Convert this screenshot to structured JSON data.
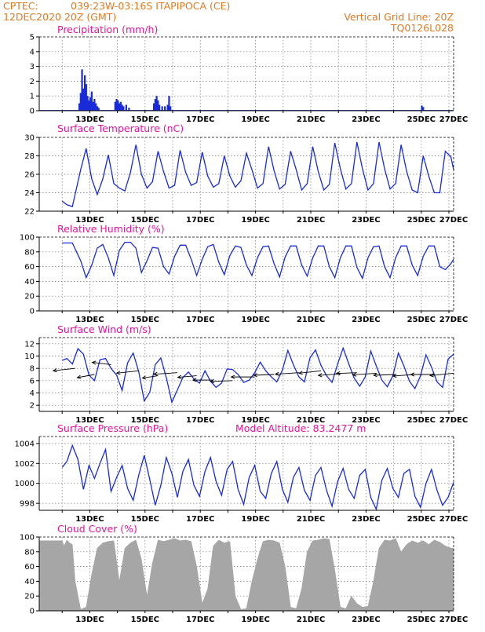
{
  "header": {
    "source": "CPTEC:",
    "location": "039:23W-03:16S  ITAPIPOCA (CE)",
    "datetime": "12DEC2020 20Z (GMT)",
    "grid_note": "Vertical Grid Line: 20Z",
    "code": "TQ0126L028"
  },
  "x_labels": [
    "13DEC",
    "15DEC",
    "17DEC",
    "19DEC",
    "21DEC",
    "23DEC",
    "25DEC",
    "27DEC"
  ],
  "chart_data": [
    {
      "id": "precip",
      "type": "bar",
      "title": "Precipitation (mm/h)",
      "ylim": [
        0,
        5
      ],
      "yticks": [
        0,
        1,
        2,
        3,
        4,
        5
      ],
      "x_unit": "days since 12DEC2020 00Z",
      "x": [
        1.45,
        1.5,
        1.55,
        1.6,
        1.65,
        1.7,
        1.75,
        1.8,
        1.85,
        1.9,
        1.95,
        2.0,
        2.05,
        2.1,
        2.15,
        2.75,
        2.8,
        2.85,
        2.9,
        2.95,
        3.0,
        3.05,
        3.15,
        3.25,
        4.15,
        4.2,
        4.25,
        4.3,
        4.35,
        4.45,
        4.55,
        4.65,
        4.7,
        4.75,
        13.85,
        13.9
      ],
      "values": [
        0.5,
        1.2,
        2.8,
        1.5,
        2.4,
        1.8,
        1.0,
        0.7,
        0.9,
        1.3,
        0.6,
        0.8,
        0.5,
        0.3,
        0.2,
        0.6,
        0.8,
        0.7,
        0.5,
        0.6,
        0.4,
        0.3,
        0.4,
        0.2,
        0.5,
        0.8,
        1.0,
        0.7,
        0.4,
        0.3,
        0.3,
        0.4,
        1.0,
        0.3,
        0.35,
        0.25
      ]
    },
    {
      "id": "temp",
      "type": "line",
      "title": "Surface Temperature (nC)",
      "ylim": [
        22,
        30
      ],
      "yticks": [
        22,
        24,
        26,
        28,
        30
      ],
      "x": [
        0.83,
        1.0,
        1.2,
        1.5,
        1.7,
        1.9,
        2.1,
        2.3,
        2.5,
        2.7,
        2.9,
        3.1,
        3.3,
        3.5,
        3.7,
        3.9,
        4.1,
        4.3,
        4.5,
        4.7,
        4.9,
        5.1,
        5.3,
        5.5,
        5.7,
        5.9,
        6.1,
        6.3,
        6.5,
        6.7,
        6.9,
        7.1,
        7.3,
        7.5,
        7.7,
        7.9,
        8.1,
        8.3,
        8.5,
        8.7,
        8.9,
        9.1,
        9.3,
        9.5,
        9.7,
        9.9,
        10.1,
        10.3,
        10.5,
        10.7,
        10.9,
        11.1,
        11.3,
        11.5,
        11.7,
        11.9,
        12.1,
        12.3,
        12.5,
        12.7,
        12.9,
        13.1,
        13.3,
        13.5,
        13.7,
        13.9,
        14.1,
        14.3,
        14.5,
        14.7,
        14.9,
        15.0
      ],
      "values": [
        23.1,
        22.7,
        22.5,
        26.5,
        28.8,
        25.5,
        23.8,
        25.5,
        28.1,
        25.0,
        24.5,
        24.2,
        26.2,
        29.2,
        26.0,
        24.5,
        25.2,
        28.5,
        26.3,
        24.5,
        24.8,
        28.6,
        26.2,
        24.8,
        25.1,
        28.4,
        25.8,
        24.6,
        25.0,
        28.0,
        25.8,
        24.6,
        25.3,
        28.3,
        26.5,
        24.5,
        25.0,
        29.0,
        26.4,
        24.4,
        24.9,
        28.5,
        26.5,
        24.3,
        25.0,
        29.0,
        26.3,
        24.3,
        24.9,
        29.4,
        26.6,
        24.4,
        25.0,
        29.5,
        26.6,
        24.3,
        25.0,
        29.5,
        26.6,
        24.4,
        25.0,
        29.2,
        26.3,
        24.3,
        24.0,
        28.0,
        25.8,
        24.0,
        24.0,
        28.5,
        27.9,
        26.5
      ]
    },
    {
      "id": "rh",
      "type": "line",
      "title": "Relative Humidity (%)",
      "ylim": [
        0,
        100
      ],
      "yticks": [
        0,
        20,
        40,
        60,
        80,
        100
      ],
      "x": [
        0.83,
        1.0,
        1.2,
        1.5,
        1.7,
        1.9,
        2.1,
        2.3,
        2.5,
        2.7,
        2.9,
        3.1,
        3.3,
        3.5,
        3.7,
        3.9,
        4.1,
        4.3,
        4.5,
        4.7,
        4.9,
        5.1,
        5.3,
        5.5,
        5.7,
        5.9,
        6.1,
        6.3,
        6.5,
        6.7,
        6.9,
        7.1,
        7.3,
        7.5,
        7.7,
        7.9,
        8.1,
        8.3,
        8.5,
        8.7,
        8.9,
        9.1,
        9.3,
        9.5,
        9.7,
        9.9,
        10.1,
        10.3,
        10.5,
        10.7,
        10.9,
        11.1,
        11.3,
        11.5,
        11.7,
        11.9,
        12.1,
        12.3,
        12.5,
        12.7,
        12.9,
        13.1,
        13.3,
        13.5,
        13.7,
        13.9,
        14.1,
        14.3,
        14.5,
        14.7,
        14.9,
        15.0
      ],
      "values": [
        92,
        92,
        92,
        68,
        45,
        62,
        85,
        90,
        72,
        48,
        82,
        93,
        93,
        85,
        52,
        68,
        86,
        85,
        60,
        50,
        74,
        89,
        89,
        70,
        48,
        70,
        87,
        90,
        66,
        49,
        75,
        88,
        86,
        62,
        48,
        72,
        87,
        88,
        64,
        46,
        73,
        88,
        88,
        62,
        47,
        72,
        88,
        88,
        60,
        45,
        72,
        88,
        88,
        59,
        44,
        72,
        87,
        88,
        60,
        45,
        72,
        88,
        88,
        62,
        48,
        74,
        88,
        88,
        60,
        56,
        64,
        70
      ]
    },
    {
      "id": "wind",
      "type": "line",
      "title": "Surface Wind (m/s)",
      "ylim": [
        1,
        13
      ],
      "yticks": [
        2,
        4,
        6,
        8,
        10,
        12
      ],
      "x": [
        0.83,
        1.0,
        1.2,
        1.4,
        1.6,
        1.8,
        2.0,
        2.2,
        2.4,
        2.6,
        2.8,
        3.0,
        3.2,
        3.4,
        3.6,
        3.8,
        4.0,
        4.2,
        4.4,
        4.6,
        4.8,
        5.0,
        5.2,
        5.4,
        5.6,
        5.8,
        6.0,
        6.2,
        6.4,
        6.6,
        6.8,
        7.0,
        7.2,
        7.4,
        7.6,
        7.8,
        8.0,
        8.2,
        8.4,
        8.6,
        8.8,
        9.0,
        9.2,
        9.4,
        9.6,
        9.8,
        10.0,
        10.2,
        10.4,
        10.6,
        10.8,
        11.0,
        11.2,
        11.4,
        11.6,
        11.8,
        12.0,
        12.2,
        12.4,
        12.6,
        12.8,
        13.0,
        13.2,
        13.4,
        13.6,
        13.8,
        14.0,
        14.2,
        14.4,
        14.6,
        14.8,
        15.0
      ],
      "values": [
        9.3,
        9.6,
        8.7,
        11.2,
        10.3,
        6.9,
        6.0,
        9.4,
        9.6,
        8.0,
        6.9,
        4.4,
        8.9,
        10.5,
        7.5,
        2.7,
        4.1,
        8.6,
        9.7,
        6.5,
        2.5,
        4.5,
        6.5,
        7.4,
        6.3,
        5.6,
        7.6,
        5.9,
        4.9,
        5.6,
        7.9,
        7.8,
        7.0,
        5.7,
        6.1,
        7.3,
        9.0,
        7.6,
        6.6,
        5.8,
        7.7,
        10.9,
        8.6,
        6.6,
        5.8,
        9.7,
        11.0,
        8.5,
        6.8,
        5.7,
        8.7,
        11.3,
        8.8,
        6.4,
        5.1,
        6.6,
        10.8,
        8.4,
        6.1,
        5.0,
        6.8,
        10.5,
        8.4,
        5.9,
        4.7,
        6.8,
        10.2,
        8.2,
        5.8,
        4.9,
        9.5,
        10.3
      ]
    },
    {
      "id": "pressure",
      "type": "line",
      "title": "Surface Pressure (hPa)",
      "annotation": "Model Altitude: 83.2477 m",
      "ylim": [
        997.3,
        1004.7
      ],
      "yticks": [
        998,
        1000,
        1002,
        1004
      ],
      "x": [
        0.83,
        1.0,
        1.2,
        1.4,
        1.6,
        1.8,
        2.0,
        2.2,
        2.4,
        2.6,
        2.8,
        3.0,
        3.2,
        3.4,
        3.6,
        3.8,
        4.0,
        4.2,
        4.4,
        4.6,
        4.8,
        5.0,
        5.2,
        5.4,
        5.6,
        5.8,
        6.0,
        6.2,
        6.4,
        6.6,
        6.8,
        7.0,
        7.2,
        7.4,
        7.6,
        7.8,
        8.0,
        8.2,
        8.4,
        8.6,
        8.8,
        9.0,
        9.2,
        9.4,
        9.6,
        9.8,
        10.0,
        10.2,
        10.4,
        10.6,
        10.8,
        11.0,
        11.2,
        11.4,
        11.6,
        11.8,
        12.0,
        12.2,
        12.4,
        12.6,
        12.8,
        13.0,
        13.2,
        13.4,
        13.6,
        13.8,
        14.0,
        14.2,
        14.4,
        14.6,
        14.8,
        15.0
      ],
      "values": [
        1001.6,
        1002.2,
        1003.8,
        1002.4,
        999.4,
        1001.8,
        1000.5,
        1002.0,
        1003.4,
        999.2,
        1000.6,
        1001.8,
        999.5,
        998.3,
        1000.8,
        1002.8,
        1000.4,
        997.8,
        999.8,
        1002.6,
        1001.0,
        998.6,
        1001.2,
        1002.4,
        999.8,
        998.7,
        1001.2,
        1002.6,
        1000.2,
        998.8,
        1001.4,
        1002.2,
        999.4,
        997.9,
        1000.6,
        1001.8,
        999.2,
        998.5,
        1001.0,
        1002.2,
        999.4,
        998.1,
        1000.6,
        1001.6,
        999.3,
        998.3,
        1000.8,
        1001.6,
        999.3,
        997.7,
        1000.2,
        1001.5,
        999.4,
        998.5,
        1000.8,
        1001.4,
        998.6,
        997.4,
        1000.3,
        1001.5,
        999.5,
        998.6,
        1001.0,
        1001.4,
        998.7,
        997.6,
        1000.0,
        1001.4,
        999.3,
        997.8,
        998.6,
        1000.1
      ]
    },
    {
      "id": "cloud",
      "type": "area",
      "title": "Cloud Cover (%)",
      "ylim": [
        0,
        100
      ],
      "yticks": [
        0,
        20,
        40,
        60,
        80,
        100
      ],
      "x": [
        0.0,
        0.83,
        0.9,
        1.0,
        1.1,
        1.2,
        1.3,
        1.5,
        1.7,
        1.9,
        2.1,
        2.3,
        2.5,
        2.7,
        2.9,
        3.1,
        3.3,
        3.5,
        3.7,
        3.9,
        4.1,
        4.3,
        4.5,
        4.7,
        4.9,
        5.1,
        5.3,
        5.5,
        5.7,
        5.9,
        6.1,
        6.3,
        6.5,
        6.7,
        6.9,
        7.1,
        7.3,
        7.5,
        7.7,
        7.9,
        8.1,
        8.3,
        8.5,
        8.7,
        8.9,
        9.1,
        9.3,
        9.5,
        9.7,
        9.9,
        10.1,
        10.3,
        10.5,
        10.7,
        10.9,
        11.1,
        11.3,
        11.5,
        11.7,
        11.9,
        12.1,
        12.3,
        12.5,
        12.7,
        12.9,
        13.1,
        13.3,
        13.5,
        13.7,
        13.9,
        14.1,
        14.3,
        14.5,
        14.7,
        14.9,
        15.0
      ],
      "values": [
        95,
        95,
        88,
        96,
        92,
        90,
        40,
        2,
        5,
        50,
        85,
        92,
        94,
        95,
        40,
        85,
        92,
        96,
        70,
        20,
        65,
        96,
        94,
        96,
        98,
        95,
        96,
        94,
        60,
        10,
        30,
        88,
        96,
        92,
        94,
        20,
        2,
        3,
        40,
        70,
        94,
        96,
        95,
        92,
        60,
        5,
        3,
        30,
        80,
        95,
        96,
        98,
        97,
        55,
        5,
        3,
        20,
        10,
        5,
        6,
        40,
        85,
        96,
        95,
        98,
        80,
        90,
        95,
        92,
        95,
        90,
        96,
        93,
        88,
        85,
        85
      ]
    }
  ]
}
